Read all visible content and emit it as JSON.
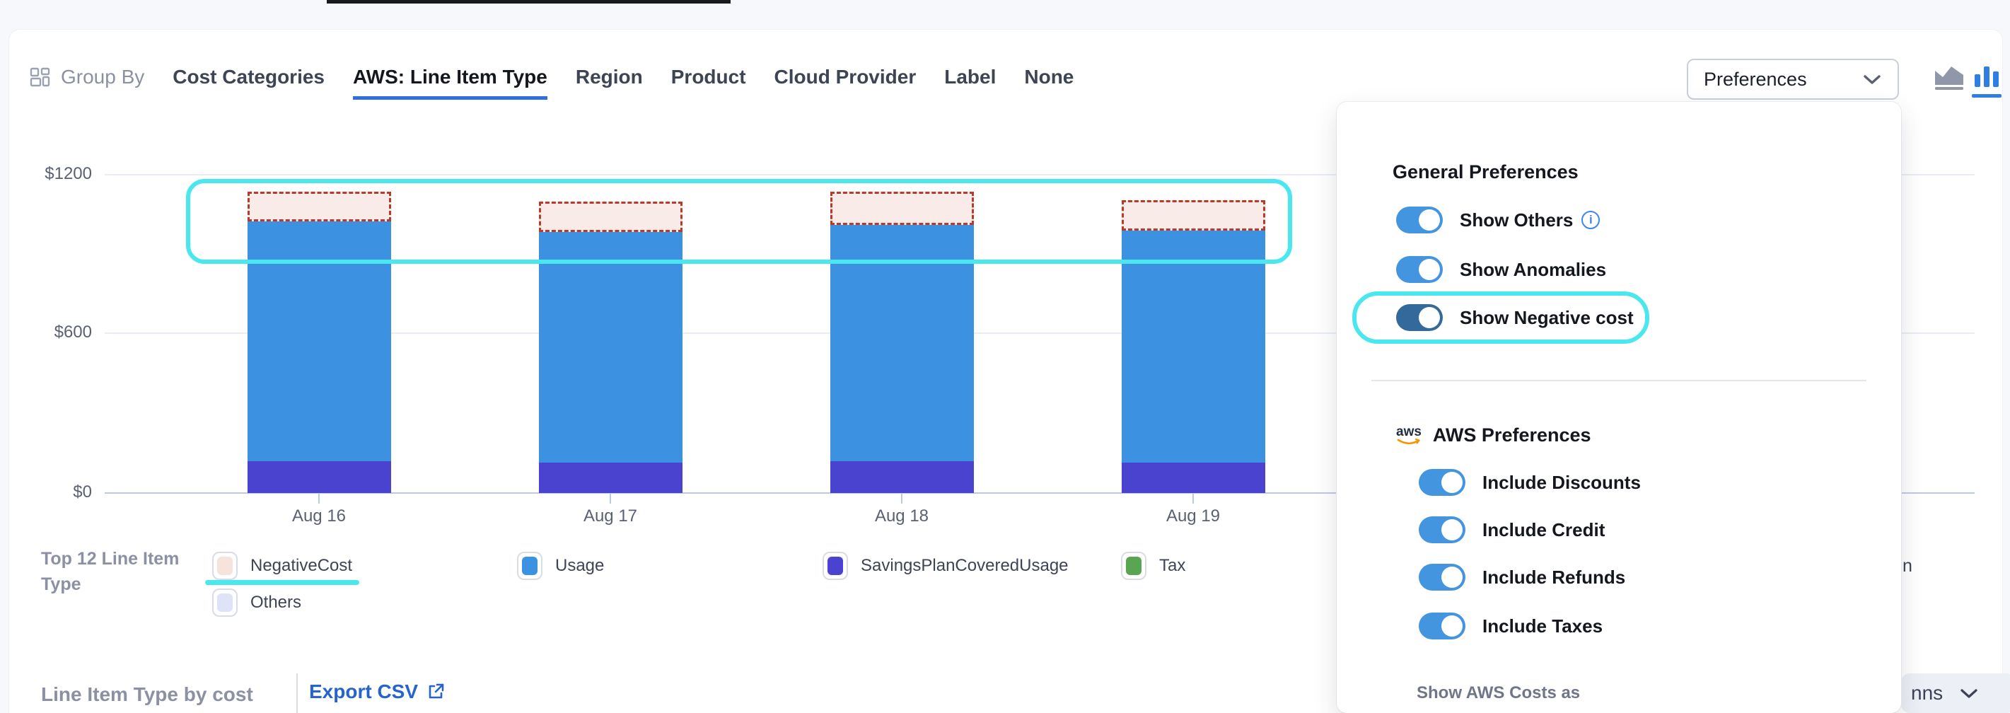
{
  "header": {
    "group_by": {
      "label": "Group By"
    },
    "tabs": [
      {
        "label": "Cost Categories",
        "active": false
      },
      {
        "label": "AWS: Line Item Type",
        "active": true
      },
      {
        "label": "Region",
        "active": false
      },
      {
        "label": "Product",
        "active": false
      },
      {
        "label": "Cloud Provider",
        "active": false
      },
      {
        "label": "Label",
        "active": false
      },
      {
        "label": "None",
        "active": false
      }
    ],
    "preferences_button": {
      "label": "Preferences"
    },
    "chart_type_toggle": {
      "area_active": false,
      "bar_active": true,
      "active_color": "#2e7fe1",
      "inactive_color": "#9097a9"
    }
  },
  "chart_data": {
    "type": "bar",
    "stacked": true,
    "categories": [
      "Aug 16",
      "Aug 17",
      "Aug 18",
      "Aug 19"
    ],
    "series": [
      {
        "name": "SavingsPlanCoveredUsage",
        "color": "#4a43d0",
        "values": [
          120,
          115,
          120,
          115
        ]
      },
      {
        "name": "Usage",
        "color": "#3c92e1",
        "values": [
          905,
          870,
          890,
          875
        ]
      },
      {
        "name": "NegativeCost",
        "fill": "#f9ece8",
        "border_color": "#b73a2b",
        "outline_style": "dashed",
        "values": [
          110,
          115,
          125,
          115
        ]
      }
    ],
    "y_ticks": [
      "$1200",
      "$600",
      "$0"
    ],
    "ylim": [
      0,
      1200
    ],
    "grid": true,
    "legend_position": "bottom"
  },
  "legend": {
    "title": "Top 12 Line Item Type",
    "items": [
      {
        "label": "NegativeCost",
        "color": "#f6e3dc",
        "highlighted": true
      },
      {
        "label": "Usage",
        "color": "#3c92e1",
        "highlighted": false
      },
      {
        "label": "SavingsPlanCoveredUsage",
        "color": "#4a43d0",
        "highlighted": false
      },
      {
        "label": "Tax",
        "color": "#58a552",
        "highlighted": false
      },
      {
        "label": "Others",
        "color": "#dfe3f7",
        "highlighted": false
      }
    ],
    "partial_item_text": "n"
  },
  "preferences_panel": {
    "toggle_on_color": "#4495e0",
    "general": {
      "heading": "General Preferences",
      "toggles": [
        {
          "label": "Show Others",
          "on": true,
          "has_info_icon": true,
          "highlighted": false
        },
        {
          "label": "Show Anomalies",
          "on": true,
          "has_info_icon": false,
          "highlighted": false
        },
        {
          "label": "Show Negative cost",
          "on": true,
          "has_info_icon": false,
          "highlighted": true,
          "color": "#34699b"
        }
      ]
    },
    "aws": {
      "heading": "AWS Preferences",
      "toggles": [
        {
          "label": "Include Discounts",
          "on": true
        },
        {
          "label": "Include Credit",
          "on": true
        },
        {
          "label": "Include Refunds",
          "on": true
        },
        {
          "label": "Include Taxes",
          "on": true
        }
      ],
      "footer_label": "Show AWS Costs as"
    }
  },
  "footer": {
    "section_title": "Line Item Type by cost",
    "export_csv_label": "Export CSV",
    "columns_dropdown_partial": "nns"
  },
  "annotations": {
    "color": "#4ae8ee"
  }
}
